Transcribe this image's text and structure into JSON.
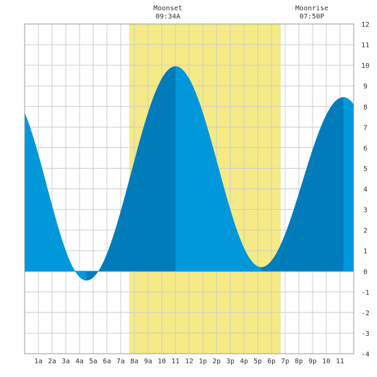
{
  "chart_data": {
    "type": "area",
    "ylim": [
      -4,
      12
    ],
    "y_ticks": [
      "12",
      "11",
      "10",
      "9",
      "8",
      "7",
      "6",
      "5",
      "4",
      "3",
      "2",
      "1",
      "0",
      "-1",
      "-2",
      "-3",
      "-4"
    ],
    "x_tick_labels": [
      "1a",
      "2a",
      "3a",
      "4a",
      "5a",
      "6a",
      "7a",
      "8a",
      "9a",
      "10",
      "11",
      "12",
      "1p",
      "2p",
      "3p",
      "4p",
      "5p",
      "6p",
      "7p",
      "8p",
      "9p",
      "10",
      "11"
    ],
    "grid": true,
    "daylight_hours": [
      7.63,
      18.67
    ],
    "tide_extremes": [
      {
        "hour": 4.5,
        "height": -0.45
      },
      {
        "hour": 11.0,
        "height": 9.95
      },
      {
        "hour": 17.25,
        "height": 0.2
      },
      {
        "hour": 23.25,
        "height": 8.45
      }
    ],
    "tide_start": {
      "hour": 0,
      "height": 7.7
    },
    "tide_end": {
      "hour": 24,
      "height": 8.1
    },
    "shade_changes_at_hours": [
      4.5,
      11.0,
      17.25,
      23.25
    ],
    "colors": {
      "rising_fill": "#007cbb",
      "falling_fill": "#0098db",
      "daylight": "#f5ea85",
      "grid": "#cccccc"
    }
  },
  "moonset": {
    "label": "Moonset",
    "time": "09:34A"
  },
  "moonrise": {
    "label": "Moonrise",
    "time": "07:50P"
  }
}
